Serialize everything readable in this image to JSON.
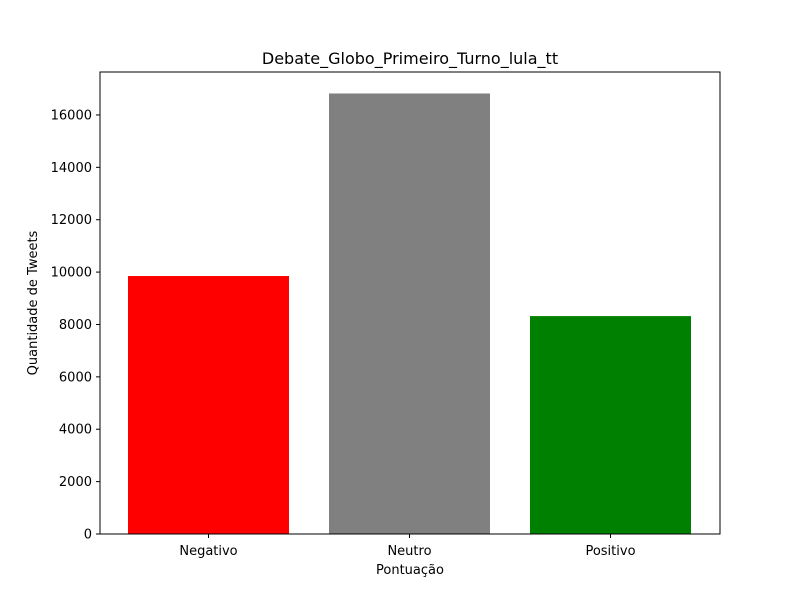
{
  "chart_data": {
    "type": "bar",
    "title": "Debate_Globo_Primeiro_Turno_lula_tt",
    "xlabel": "Pontuação",
    "ylabel": "Quantidade de Tweets",
    "categories": [
      "Negativo",
      "Neutro",
      "Positivo"
    ],
    "values": [
      9850,
      16820,
      8320
    ],
    "colors": [
      "#ff0000",
      "#808080",
      "#008000"
    ],
    "ylim": [
      0,
      17640
    ],
    "yticks": [
      0,
      2000,
      4000,
      6000,
      8000,
      10000,
      12000,
      14000,
      16000
    ],
    "grid": false
  }
}
